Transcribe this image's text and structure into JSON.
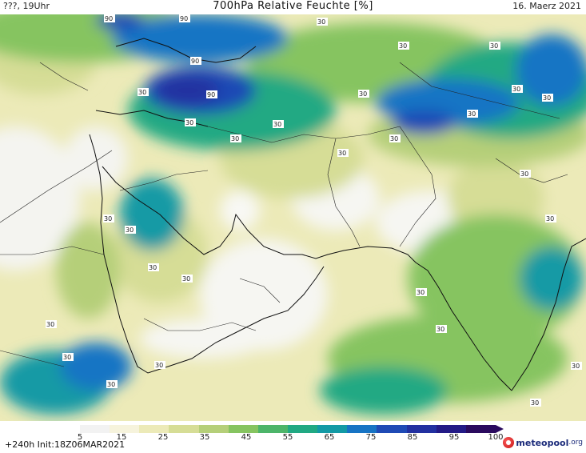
{
  "header": {
    "left": "???, 19Uhr",
    "title": "700hPa Relative Feuchte [%]",
    "right": "16. Maerz 2021"
  },
  "footer": {
    "run_info": "+240h Init:18Z06MAR2021",
    "logo_name": "meteopool",
    "logo_tld": ".org"
  },
  "legend": {
    "ticks": [
      "5",
      "15",
      "25",
      "35",
      "45",
      "55",
      "65",
      "75",
      "85",
      "95",
      "100"
    ],
    "colors": [
      "#f2f2f2",
      "#f6f3dc",
      "#eceab8",
      "#d6dd96",
      "#b5cf79",
      "#86c460",
      "#4db56a",
      "#21a983",
      "#139aa5",
      "#1774c4",
      "#1f4ab5",
      "#2230a0",
      "#231a86",
      "#2a0a5e"
    ]
  },
  "map": {
    "contour_labels": [
      "90",
      "90",
      "90",
      "90",
      "30",
      "30",
      "30",
      "30",
      "30",
      "30",
      "30",
      "30",
      "30",
      "30",
      "30",
      "30",
      "30",
      "30",
      "30",
      "30",
      "30",
      "30",
      "30",
      "30",
      "30",
      "30",
      "30",
      "30",
      "30",
      "30",
      "30"
    ]
  }
}
